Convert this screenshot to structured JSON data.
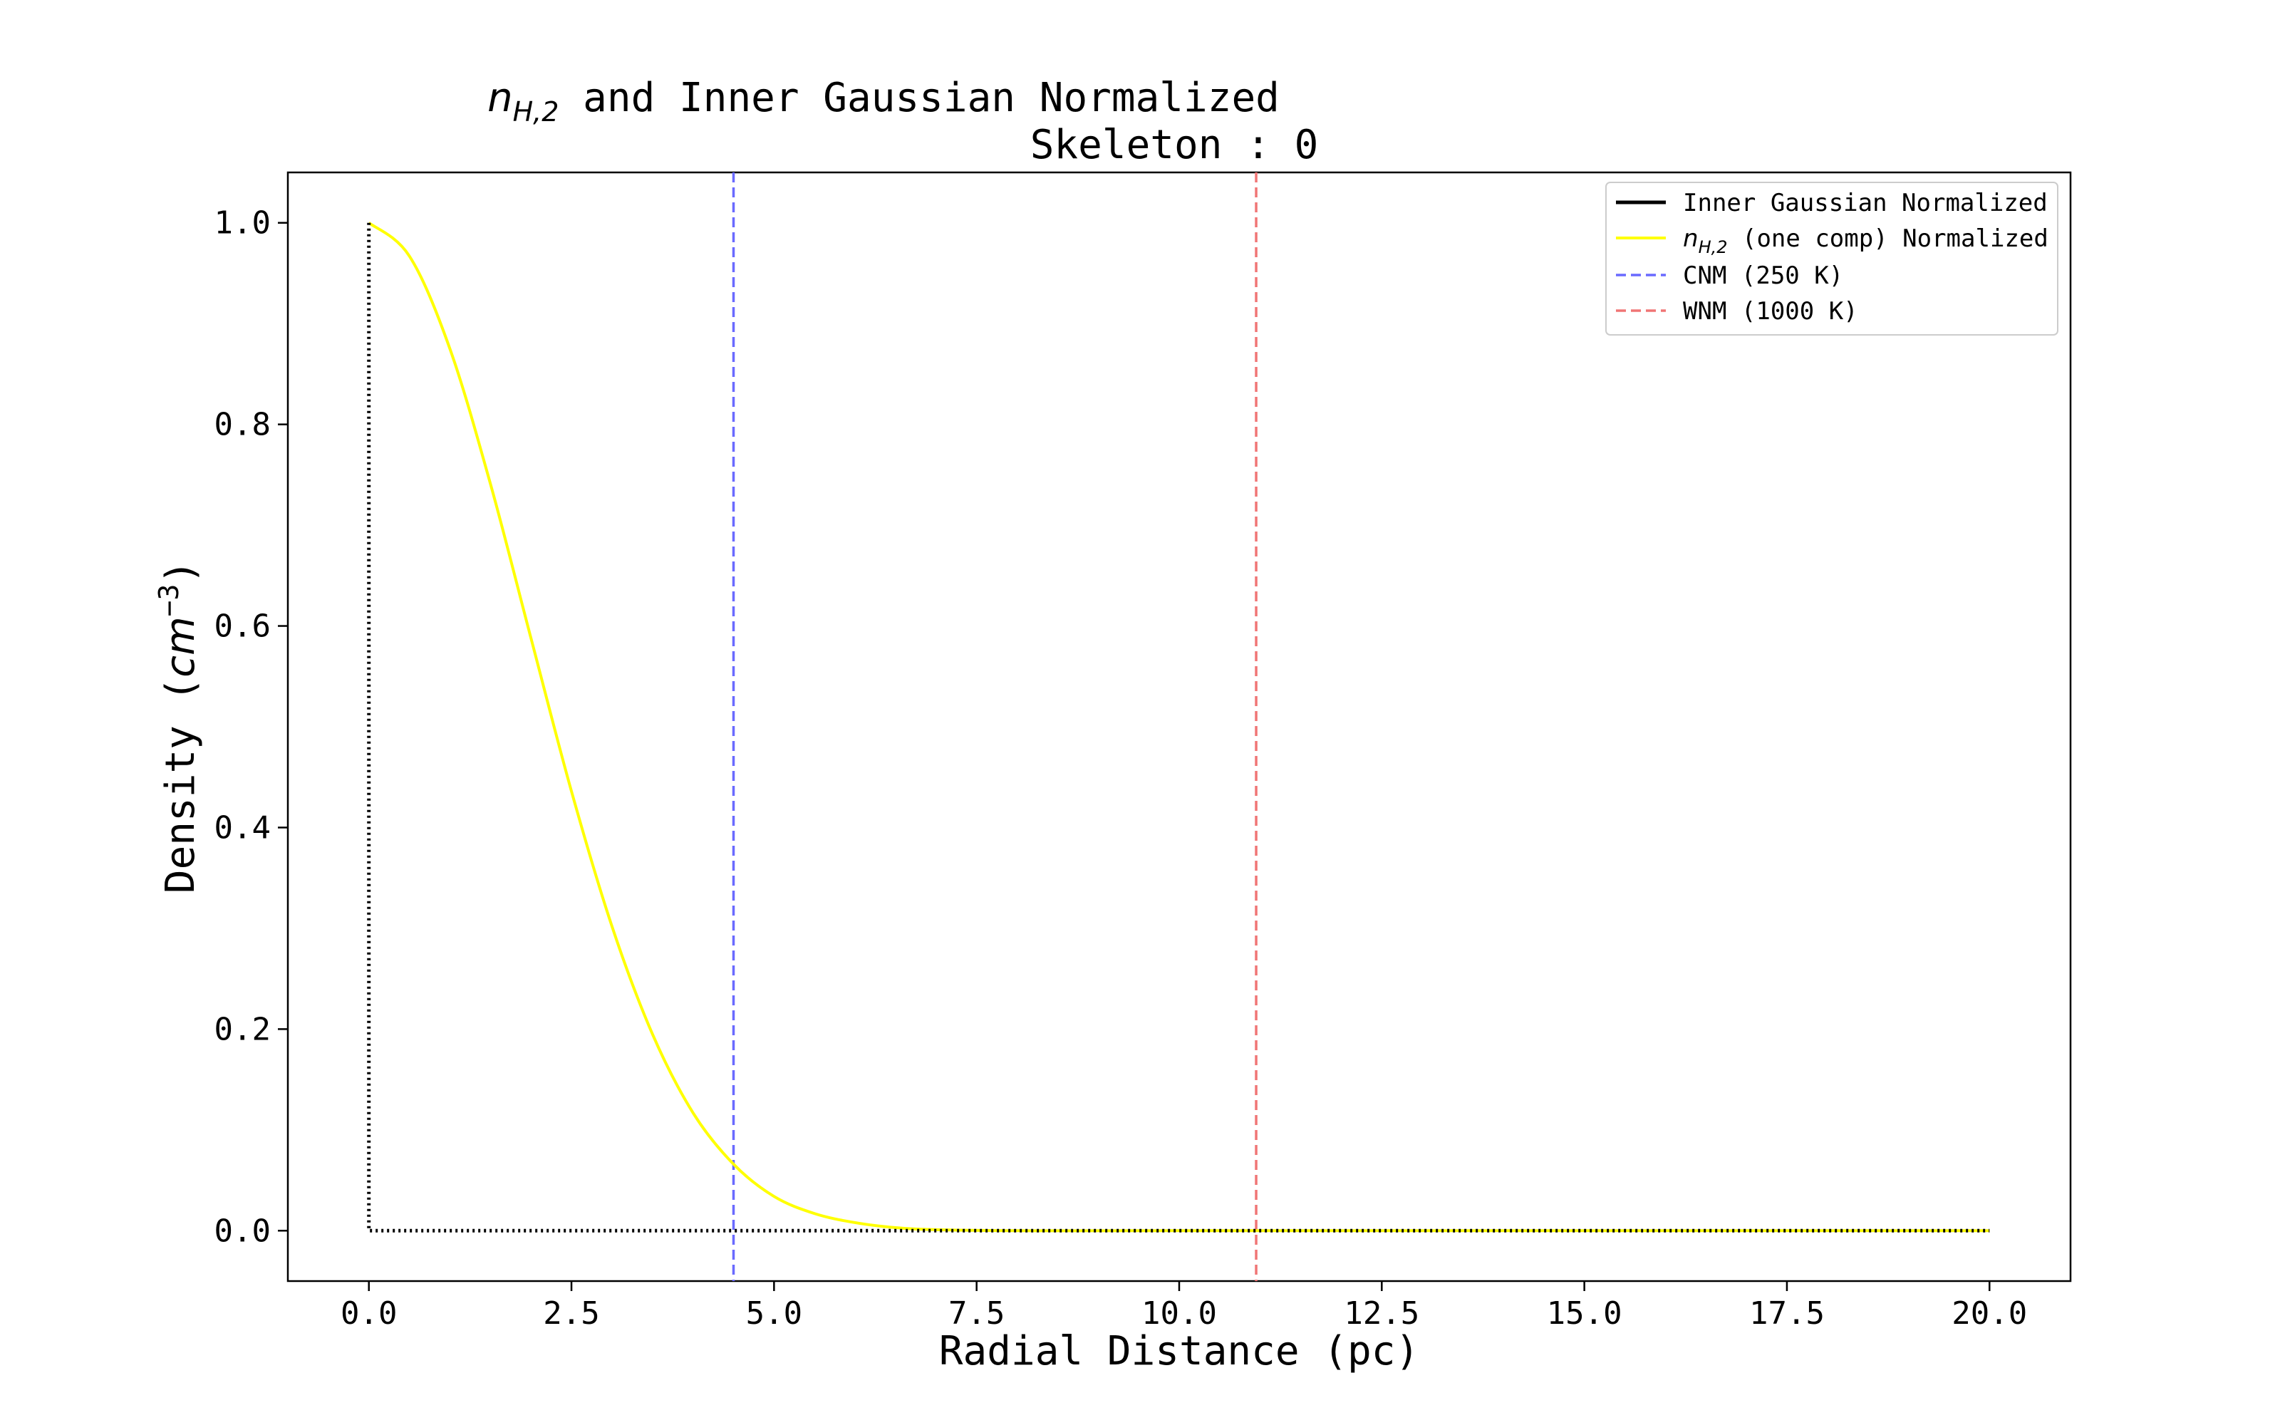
{
  "chart_data": {
    "type": "line",
    "title_line1_symbol": "n",
    "title_line1_subscript": "H,2",
    "title_line1_rest": " and Inner Gaussian Normalized",
    "title_line2": "Skeleton : 0",
    "xlabel": "Radial Distance (pc)",
    "ylabel_prefix": "Density (",
    "ylabel_unit": "cm",
    "ylabel_exponent": "−3",
    "ylabel_suffix": ")",
    "xlim": [
      -1.0,
      21.0
    ],
    "ylim": [
      -0.05,
      1.05
    ],
    "x_ticks": [
      0.0,
      2.5,
      5.0,
      7.5,
      10.0,
      12.5,
      15.0,
      17.5,
      20.0
    ],
    "x_tick_labels": [
      "0.0",
      "2.5",
      "5.0",
      "7.5",
      "10.0",
      "12.5",
      "15.0",
      "17.5",
      "20.0"
    ],
    "y_ticks": [
      0.0,
      0.2,
      0.4,
      0.6,
      0.8,
      1.0
    ],
    "y_tick_labels": [
      "0.0",
      "0.2",
      "0.4",
      "0.6",
      "0.8",
      "1.0"
    ],
    "grid": false,
    "legend_position": "top-right",
    "series": [
      {
        "name": "Inner Gaussian Normalized",
        "color": "#000000",
        "style": "dotted",
        "x": [
          0.0,
          0.0,
          0.15,
          20.0
        ],
        "y": [
          1.0,
          0.0,
          0.0,
          0.0
        ]
      },
      {
        "name_symbol": "n",
        "name_subscript": "H,2",
        "name_rest": " (one comp) Normalized",
        "color": "#ffff00",
        "style": "solid",
        "x": [
          0.0,
          0.5,
          1.0,
          1.5,
          2.0,
          2.5,
          3.0,
          3.5,
          4.0,
          4.5,
          5.0,
          5.5,
          6.0,
          6.5,
          7.0,
          8.0,
          10.0,
          15.0,
          20.0
        ],
        "y": [
          1.0,
          0.967,
          0.875,
          0.741,
          0.588,
          0.436,
          0.302,
          0.195,
          0.117,
          0.066,
          0.034,
          0.017,
          0.008,
          0.003,
          0.001,
          0.0,
          0.0,
          0.0,
          0.0
        ]
      }
    ],
    "vlines": [
      {
        "name": "CNM (250 K)",
        "x": 4.5,
        "color": "#6a6aff",
        "style": "dashed"
      },
      {
        "name": "WNM (1000 K)",
        "x": 10.95,
        "color": "#f07575",
        "style": "dashed"
      }
    ]
  }
}
